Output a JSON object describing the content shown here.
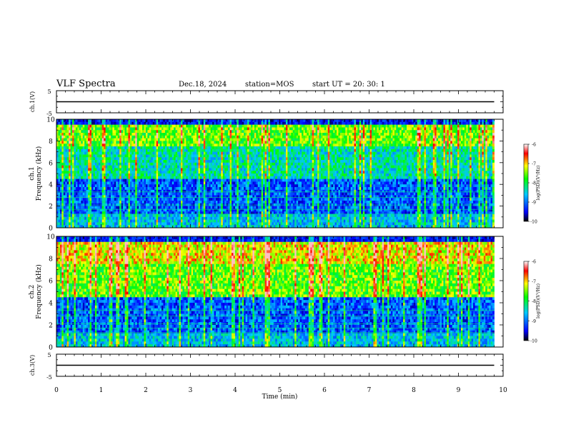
{
  "header": {
    "title": "VLF Spectra",
    "date": "Dec.18, 2024",
    "station": "station=MOS",
    "start": "start  UT  =   20: 30: 1"
  },
  "colors": {
    "background": "#ffffff",
    "axes": "#000000",
    "colormap": [
      "#000000",
      "#0000ff",
      "#00c8ff",
      "#00ff00",
      "#ffff00",
      "#ff0000",
      "#ffffff"
    ]
  },
  "chart_data": [
    {
      "type": "line",
      "panel": "ch1-signal",
      "ylabel": "ch.1(V)",
      "ylim": [
        -5,
        5
      ],
      "yticks": [
        "5",
        "-5"
      ],
      "xlim": [
        0,
        10
      ],
      "x": [
        0,
        9.8
      ],
      "y": [
        0,
        0
      ]
    },
    {
      "type": "heatmap",
      "panel": "ch1-spectrogram",
      "ylabel": "ch.1  Frequency (kHz)",
      "ylim": [
        0,
        10
      ],
      "yticks": [
        "0",
        "2",
        "4",
        "6",
        "8",
        "10"
      ],
      "xlim": [
        0,
        10
      ],
      "data_end_min": 9.8,
      "colorbar": {
        "label": "log(PSD)(V²/Hz)",
        "range": [
          -10,
          -6
        ],
        "ticks": [
          "-6",
          "-7",
          "-8",
          "-9",
          "-10"
        ]
      }
    },
    {
      "type": "heatmap",
      "panel": "ch2-spectrogram",
      "ylabel": "ch.2  Frequency (kHz)",
      "ylim": [
        0,
        10
      ],
      "yticks": [
        "0",
        "2",
        "4",
        "6",
        "8",
        "10"
      ],
      "xlim": [
        0,
        10
      ],
      "data_end_min": 9.8,
      "colorbar": {
        "label": "log(PSD)(V²/Hz)",
        "range": [
          -10,
          -6
        ],
        "ticks": [
          "-6",
          "-7",
          "-8",
          "-9",
          "-10"
        ]
      }
    },
    {
      "type": "line",
      "panel": "ch3-signal",
      "ylabel": "ch.3(V)",
      "ylim": [
        -5,
        5
      ],
      "yticks": [
        "5",
        "-5"
      ],
      "xlim": [
        0,
        10
      ],
      "x": [
        0,
        9.8
      ],
      "y": [
        0,
        0
      ],
      "xlabel": "Time  (min)",
      "xticks": [
        "0",
        "1",
        "2",
        "3",
        "4",
        "5",
        "6",
        "7",
        "8",
        "9",
        "10"
      ]
    }
  ]
}
